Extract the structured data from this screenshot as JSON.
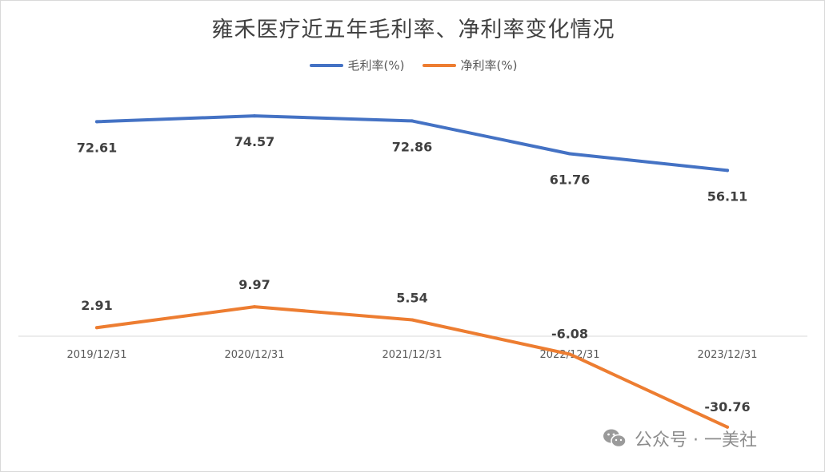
{
  "chart_data": {
    "type": "line",
    "title": "雍禾医疗近五年毛利率、净利率变化情况",
    "categories": [
      "2019/12/31",
      "2020/12/31",
      "2021/12/31",
      "2022/12/31",
      "2023/12/31"
    ],
    "series": [
      {
        "name": "毛利率(%)",
        "color": "#4472c4",
        "values": [
          72.61,
          74.57,
          72.86,
          61.76,
          56.11
        ],
        "labels": [
          "72.61",
          "74.57",
          "72.86",
          "61.76",
          "56.11"
        ]
      },
      {
        "name": "净利率(%)",
        "color": "#ed7d31",
        "values": [
          2.91,
          9.97,
          5.54,
          -6.08,
          -30.76
        ],
        "labels": [
          "2.91",
          "9.97",
          "5.54",
          "-6.08",
          "-30.76"
        ]
      }
    ],
    "xlabel": "",
    "ylabel": "",
    "legend_position": "top-center",
    "grid": false
  },
  "watermark": {
    "text": "公众号 · 一美社",
    "icon": "wechat-icon"
  }
}
